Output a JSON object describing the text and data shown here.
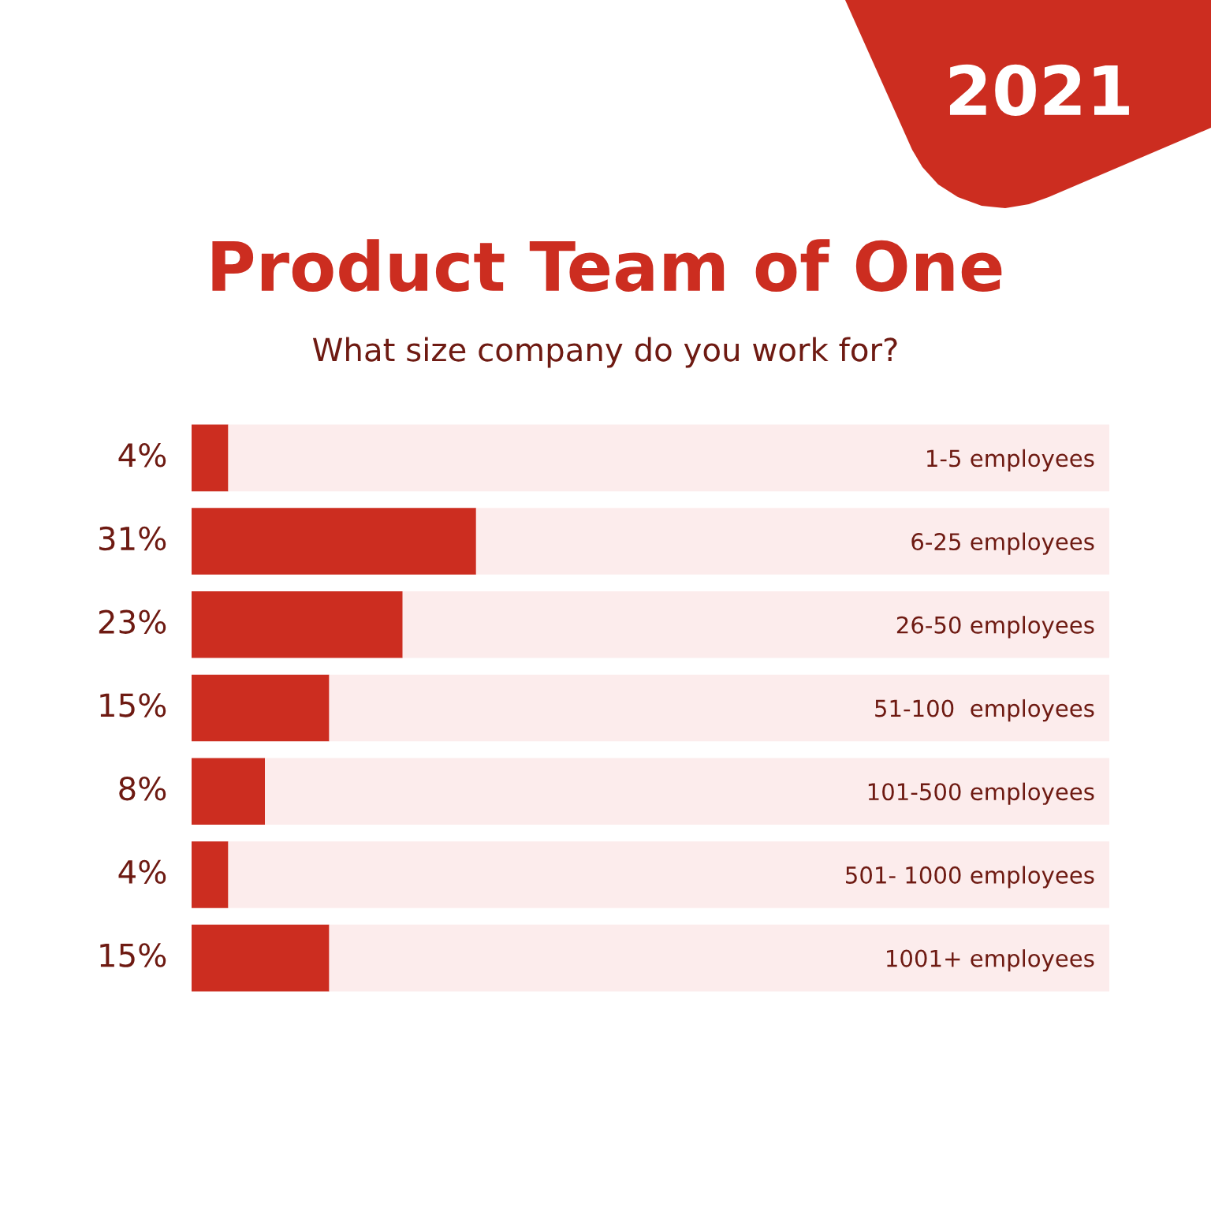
{
  "chart_data": {
    "type": "bar",
    "orientation": "horizontal",
    "stacked": true,
    "title": "Product Team of One",
    "subtitle": "What size company do you work for?",
    "annotations": [
      "2021"
    ],
    "categories": [
      "1-5 employees",
      "6-25 employees",
      "26-50 employees",
      "51-100  employees",
      "101-500 employees",
      "501- 1000 employees",
      "1001+ employees"
    ],
    "series": [
      {
        "color": "#cc2d20",
        "values": [
          4,
          31,
          23,
          15,
          8,
          4,
          15
        ],
        "value_labels": [
          "4%",
          "31%",
          "23%",
          "15%",
          "8%",
          "4%",
          "15%"
        ]
      },
      {
        "color": "#fcecec",
        "values": [
          96,
          69,
          77,
          85,
          92,
          96,
          85
        ]
      }
    ],
    "xlim": [
      0,
      100
    ],
    "tick_labels": "y"
  }
}
